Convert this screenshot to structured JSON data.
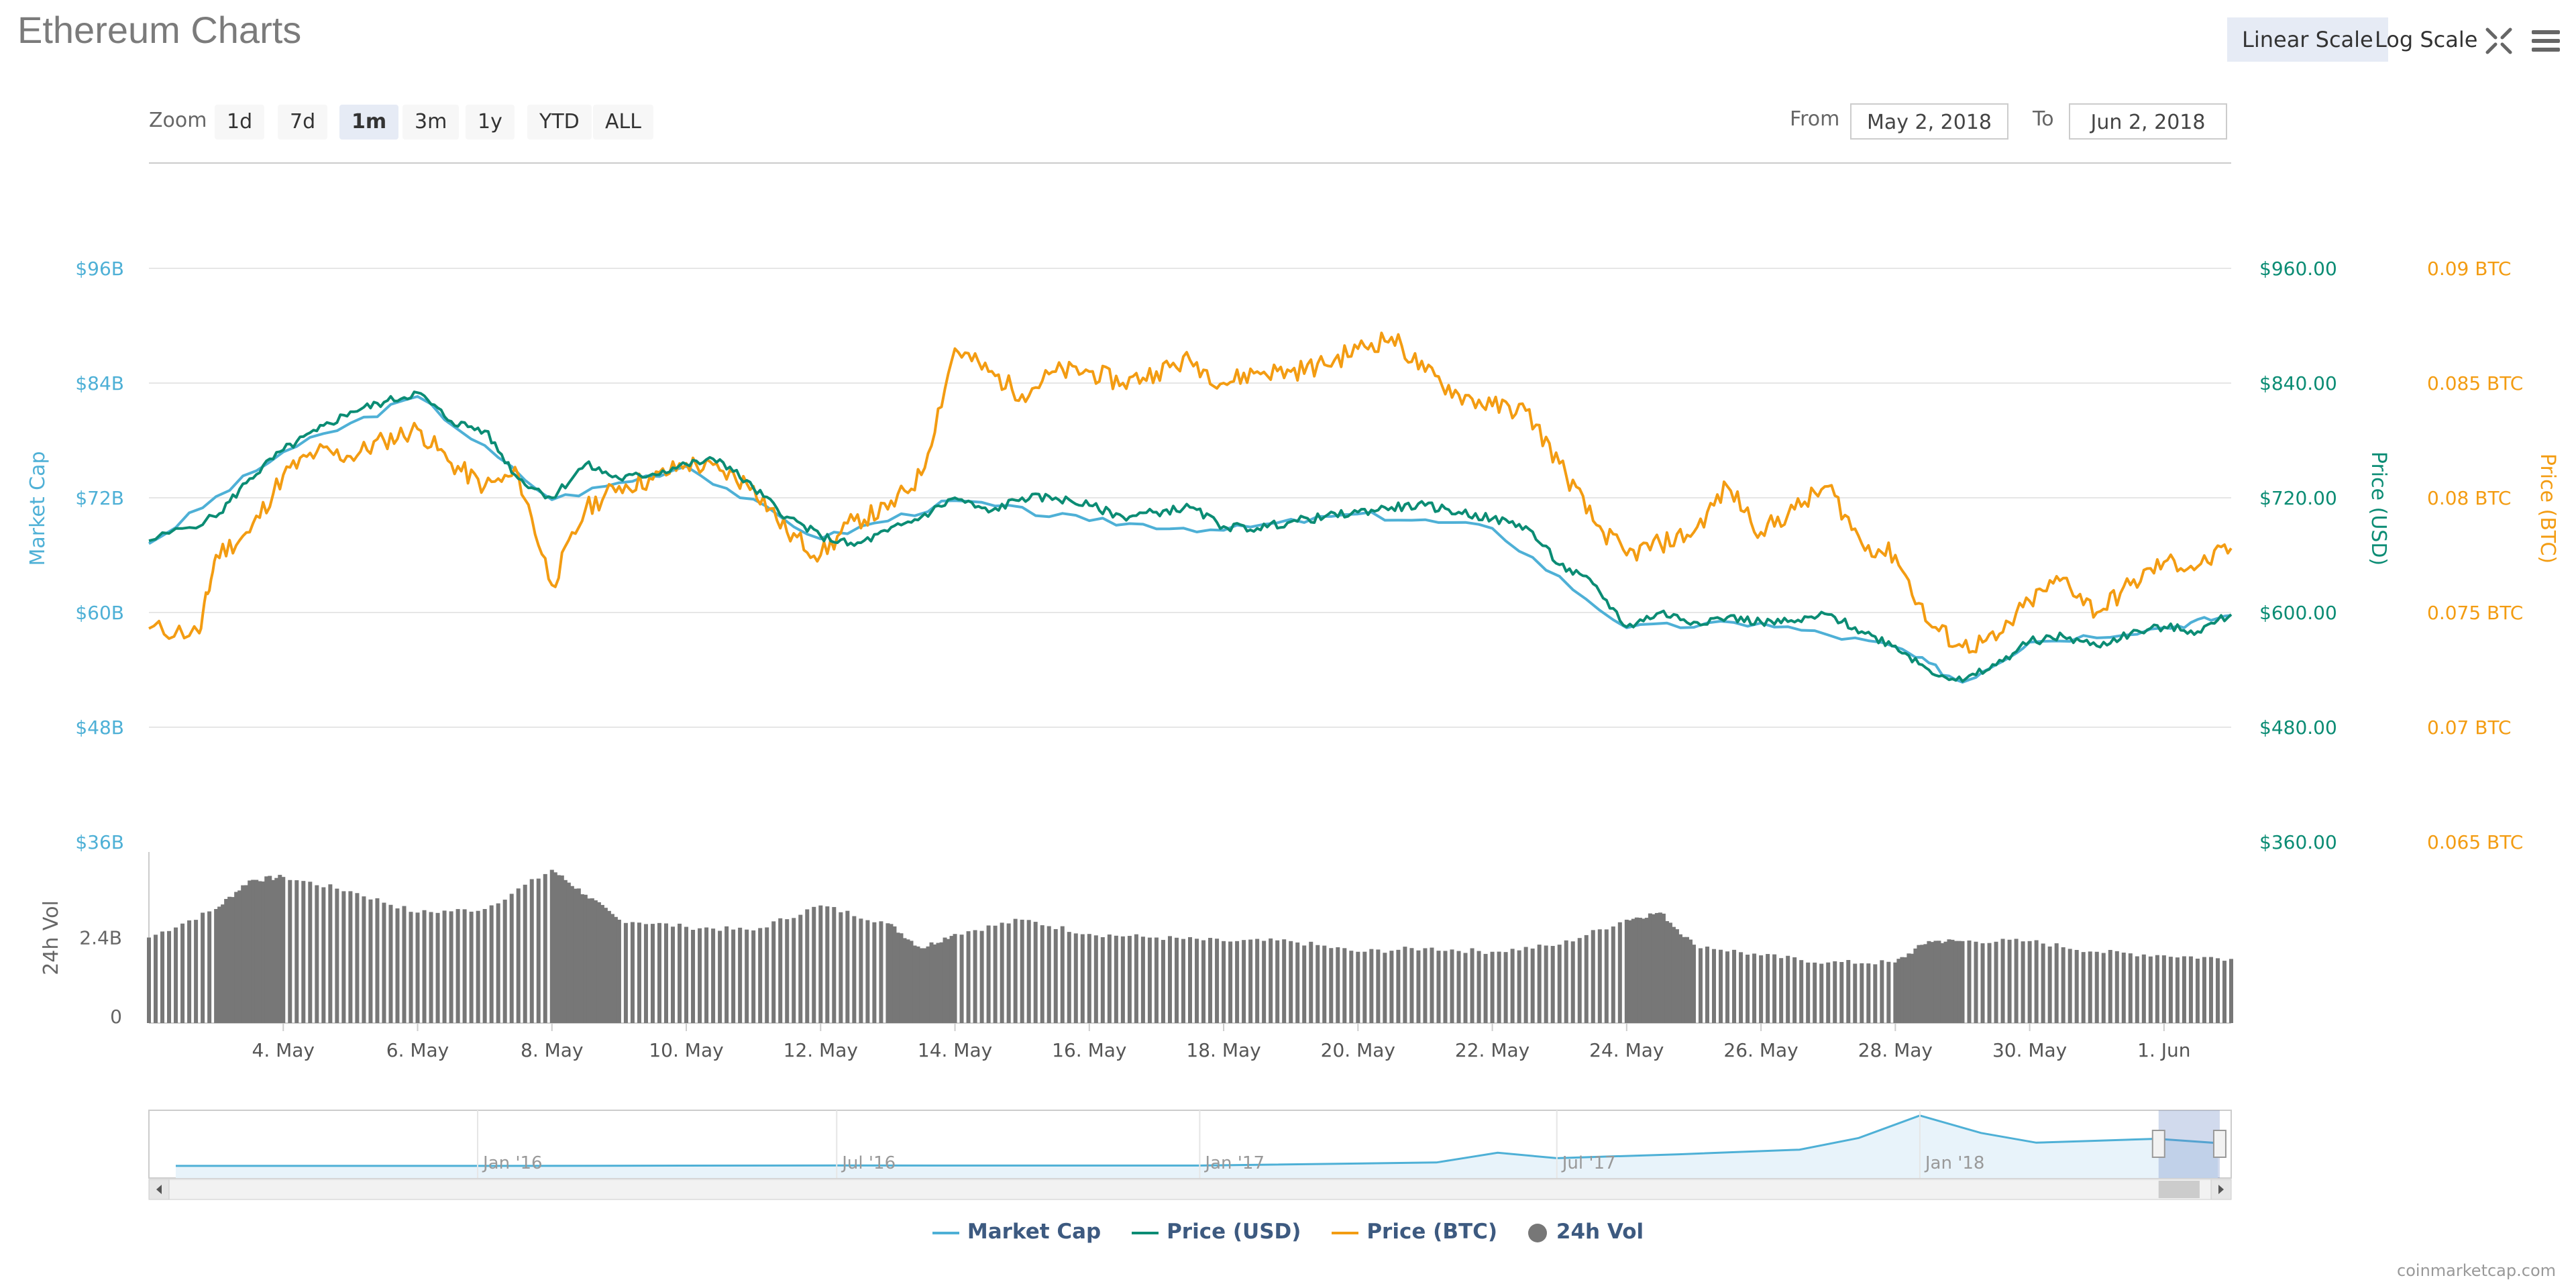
{
  "header": {
    "title": "Ethereum Charts",
    "scale_linear": "Linear Scale",
    "scale_log": "Log Scale",
    "active_scale": "linear"
  },
  "zoom": {
    "label": "Zoom",
    "buttons": [
      "1d",
      "7d",
      "1m",
      "3m",
      "1y",
      "YTD",
      "ALL"
    ],
    "active": "1m"
  },
  "range": {
    "from_label": "From",
    "from_value": "May 2, 2018",
    "to_label": "To",
    "to_value": "Jun 2, 2018"
  },
  "legend": {
    "items": [
      {
        "label": "Market Cap",
        "color": "#4eb0d6",
        "kind": "line"
      },
      {
        "label": "Price (USD)",
        "color": "#0b8c74",
        "kind": "line"
      },
      {
        "label": "Price (BTC)",
        "color": "#f39c12",
        "kind": "line"
      },
      {
        "label": "24h Vol",
        "color": "#777777",
        "kind": "dot"
      }
    ]
  },
  "credits": "coinmarketcap.com",
  "colors": {
    "market_cap": "#4eb0d6",
    "price_usd": "#0b8c74",
    "price_btc": "#f39c12",
    "volume": "#777777",
    "grid": "#e6e6e6"
  },
  "chart_data": {
    "type": "line",
    "axes": {
      "market_cap": {
        "label": "Market Cap",
        "ticks": [
          "$96B",
          "$84B",
          "$72B",
          "$60B",
          "$48B",
          "$36B"
        ],
        "range": [
          36,
          96
        ],
        "unit": "B"
      },
      "price_usd": {
        "label": "Price (USD)",
        "ticks": [
          "$960.00",
          "$840.00",
          "$720.00",
          "$600.00",
          "$480.00",
          "$360.00"
        ],
        "range": [
          360,
          960
        ]
      },
      "price_btc": {
        "label": "Price (BTC)",
        "ticks": [
          "0.09 BTC",
          "0.085 BTC",
          "0.08 BTC",
          "0.075 BTC",
          "0.07 BTC",
          "0.065 BTC"
        ],
        "range": [
          0.065,
          0.09
        ]
      },
      "volume": {
        "label": "24h Vol",
        "ticks": [
          "2.4B",
          "0"
        ],
        "range": [
          0,
          4.8
        ]
      }
    },
    "x_ticks": [
      "4. May",
      "6. May",
      "8. May",
      "10. May",
      "12. May",
      "14. May",
      "16. May",
      "18. May",
      "20. May",
      "22. May",
      "24. May",
      "26. May",
      "28. May",
      "30. May",
      "1. Jun"
    ],
    "x_range": [
      "2018-05-02",
      "2018-06-02"
    ],
    "series": [
      {
        "name": "Price (USD)",
        "axis": "price_usd",
        "points": [
          [
            "2018-05-02",
            675
          ],
          [
            "2018-05-03",
            700
          ],
          [
            "2018-05-03T12",
            740
          ],
          [
            "2018-05-04",
            770
          ],
          [
            "2018-05-04T12",
            790
          ],
          [
            "2018-05-05",
            810
          ],
          [
            "2018-05-05T12",
            820
          ],
          [
            "2018-05-06",
            830
          ],
          [
            "2018-05-06T12",
            800
          ],
          [
            "2018-05-07",
            790
          ],
          [
            "2018-05-07T12",
            740
          ],
          [
            "2018-05-08",
            720
          ],
          [
            "2018-05-08T12",
            755
          ],
          [
            "2018-05-09",
            740
          ],
          [
            "2018-05-09T12",
            745
          ],
          [
            "2018-05-10",
            755
          ],
          [
            "2018-05-10T12",
            760
          ],
          [
            "2018-05-11",
            730
          ],
          [
            "2018-05-11T12",
            700
          ],
          [
            "2018-05-12",
            680
          ],
          [
            "2018-05-12T12",
            670
          ],
          [
            "2018-05-13",
            685
          ],
          [
            "2018-05-13T12",
            700
          ],
          [
            "2018-05-14",
            720
          ],
          [
            "2018-05-14T12",
            705
          ],
          [
            "2018-05-15",
            720
          ],
          [
            "2018-05-15T12",
            720
          ],
          [
            "2018-05-16",
            712
          ],
          [
            "2018-05-16T12",
            700
          ],
          [
            "2018-05-17",
            705
          ],
          [
            "2018-05-17T12",
            710
          ],
          [
            "2018-05-18",
            690
          ],
          [
            "2018-05-18T12",
            688
          ],
          [
            "2018-05-19",
            695
          ],
          [
            "2018-05-19T12",
            700
          ],
          [
            "2018-05-20",
            705
          ],
          [
            "2018-05-20T12",
            710
          ],
          [
            "2018-05-21",
            712
          ],
          [
            "2018-05-21T12",
            705
          ],
          [
            "2018-05-22",
            698
          ],
          [
            "2018-05-22T12",
            690
          ],
          [
            "2018-05-23",
            650
          ],
          [
            "2018-05-23T12",
            630
          ],
          [
            "2018-05-24",
            585
          ],
          [
            "2018-05-24T12",
            600
          ],
          [
            "2018-05-25",
            590
          ],
          [
            "2018-05-25T12",
            595
          ],
          [
            "2018-05-26",
            590
          ],
          [
            "2018-05-26T12",
            590
          ],
          [
            "2018-05-27",
            598
          ],
          [
            "2018-05-27T12",
            580
          ],
          [
            "2018-05-28",
            565
          ],
          [
            "2018-05-28T12",
            540
          ],
          [
            "2018-05-29",
            528
          ],
          [
            "2018-05-29T12",
            545
          ],
          [
            "2018-05-30",
            570
          ],
          [
            "2018-05-30T12",
            575
          ],
          [
            "2018-05-31",
            565
          ],
          [
            "2018-05-31T12",
            578
          ],
          [
            "2018-06-01",
            585
          ],
          [
            "2018-06-01T12",
            580
          ],
          [
            "2018-06-02",
            598
          ]
        ]
      },
      {
        "name": "Market Cap",
        "axis": "market_cap",
        "points": [
          [
            "2018-05-02",
            67.2
          ],
          [
            "2018-05-04",
            76.8
          ],
          [
            "2018-05-06",
            82.6
          ],
          [
            "2018-05-08",
            71.8
          ],
          [
            "2018-05-10",
            75.3
          ],
          [
            "2018-05-12",
            67.7
          ],
          [
            "2018-05-14",
            71.7
          ],
          [
            "2018-05-16",
            69.6
          ],
          [
            "2018-05-18",
            68.6
          ],
          [
            "2018-05-20",
            70.3
          ],
          [
            "2018-05-22",
            68.8
          ],
          [
            "2018-05-24",
            58.4
          ],
          [
            "2018-05-26",
            58.9
          ],
          [
            "2018-05-28",
            56.4
          ],
          [
            "2018-05-29",
            52.7
          ],
          [
            "2018-05-30",
            56.9
          ],
          [
            "2018-06-01",
            58.4
          ],
          [
            "2018-06-02",
            59.7
          ]
        ]
      },
      {
        "name": "Price (BTC)",
        "axis": "price_btc",
        "points": [
          [
            "2018-05-02",
            0.0743
          ],
          [
            "2018-05-02T18",
            0.0741
          ],
          [
            "2018-05-03",
            0.0775
          ],
          [
            "2018-05-03T12",
            0.0785
          ],
          [
            "2018-05-04",
            0.081
          ],
          [
            "2018-05-04T12",
            0.082
          ],
          [
            "2018-05-05",
            0.0818
          ],
          [
            "2018-05-05T12",
            0.0825
          ],
          [
            "2018-05-06",
            0.083
          ],
          [
            "2018-05-06T12",
            0.0815
          ],
          [
            "2018-05-07",
            0.0805
          ],
          [
            "2018-05-07T12",
            0.081
          ],
          [
            "2018-05-08",
            0.0762
          ],
          [
            "2018-05-08T12",
            0.0795
          ],
          [
            "2018-05-09",
            0.0805
          ],
          [
            "2018-05-09T12",
            0.0808
          ],
          [
            "2018-05-10",
            0.0815
          ],
          [
            "2018-05-10T12",
            0.0812
          ],
          [
            "2018-05-11",
            0.0805
          ],
          [
            "2018-05-11T12",
            0.0785
          ],
          [
            "2018-05-12",
            0.0775
          ],
          [
            "2018-05-12T12",
            0.079
          ],
          [
            "2018-05-13",
            0.0795
          ],
          [
            "2018-05-13T12",
            0.081
          ],
          [
            "2018-05-14",
            0.0865
          ],
          [
            "2018-05-14T12",
            0.0855
          ],
          [
            "2018-05-15",
            0.0845
          ],
          [
            "2018-05-15T12",
            0.0855
          ],
          [
            "2018-05-16",
            0.0855
          ],
          [
            "2018-05-16T12",
            0.085
          ],
          [
            "2018-05-17",
            0.0855
          ],
          [
            "2018-05-17T12",
            0.086
          ],
          [
            "2018-05-18",
            0.085
          ],
          [
            "2018-05-18T12",
            0.0855
          ],
          [
            "2018-05-19",
            0.0855
          ],
          [
            "2018-05-19T12",
            0.0858
          ],
          [
            "2018-05-20",
            0.0865
          ],
          [
            "2018-05-20T12",
            0.087
          ],
          [
            "2018-05-21",
            0.0855
          ],
          [
            "2018-05-21T12",
            0.0845
          ],
          [
            "2018-05-22",
            0.084
          ],
          [
            "2018-05-22T12",
            0.0838
          ],
          [
            "2018-05-23",
            0.0815
          ],
          [
            "2018-05-23T12",
            0.079
          ],
          [
            "2018-05-24",
            0.0775
          ],
          [
            "2018-05-24T12",
            0.078
          ],
          [
            "2018-05-25",
            0.0785
          ],
          [
            "2018-05-25T12",
            0.0805
          ],
          [
            "2018-05-26",
            0.0785
          ],
          [
            "2018-05-26T12",
            0.0795
          ],
          [
            "2018-05-27",
            0.0805
          ],
          [
            "2018-05-27T12",
            0.078
          ],
          [
            "2018-05-28",
            0.0775
          ],
          [
            "2018-05-28T12",
            0.0745
          ],
          [
            "2018-05-29",
            0.0735
          ],
          [
            "2018-05-29T12",
            0.0738
          ],
          [
            "2018-05-30",
            0.0755
          ],
          [
            "2018-05-30T12",
            0.0765
          ],
          [
            "2018-05-31",
            0.075
          ],
          [
            "2018-05-31T12",
            0.0762
          ],
          [
            "2018-06-01",
            0.0772
          ],
          [
            "2018-06-01T12",
            0.077
          ],
          [
            "2018-06-02",
            0.0778
          ]
        ]
      },
      {
        "name": "24h Vol",
        "axis": "volume",
        "type": "column",
        "points": [
          [
            "2018-05-02",
            2.4
          ],
          [
            "2018-05-03",
            3.2
          ],
          [
            "2018-05-03T12",
            4.0
          ],
          [
            "2018-05-04",
            4.1
          ],
          [
            "2018-05-05",
            3.7
          ],
          [
            "2018-05-06",
            3.1
          ],
          [
            "2018-05-07",
            3.2
          ],
          [
            "2018-05-08",
            4.3
          ],
          [
            "2018-05-08T12",
            3.6
          ],
          [
            "2018-05-09",
            2.9
          ],
          [
            "2018-05-10",
            2.7
          ],
          [
            "2018-05-11",
            2.6
          ],
          [
            "2018-05-12",
            3.3
          ],
          [
            "2018-05-13",
            2.8
          ],
          [
            "2018-05-13T12",
            2.1
          ],
          [
            "2018-05-14",
            2.5
          ],
          [
            "2018-05-15",
            2.9
          ],
          [
            "2018-05-16",
            2.5
          ],
          [
            "2018-05-17",
            2.4
          ],
          [
            "2018-05-18",
            2.3
          ],
          [
            "2018-05-19",
            2.3
          ],
          [
            "2018-05-20",
            2.0
          ],
          [
            "2018-05-21",
            2.1
          ],
          [
            "2018-05-22",
            2.0
          ],
          [
            "2018-05-23",
            2.2
          ],
          [
            "2018-05-24",
            2.9
          ],
          [
            "2018-05-24T12",
            3.1
          ],
          [
            "2018-05-25",
            2.2
          ],
          [
            "2018-05-26",
            1.9
          ],
          [
            "2018-05-27",
            1.7
          ],
          [
            "2018-05-28",
            1.7
          ],
          [
            "2018-05-28T12",
            2.3
          ],
          [
            "2018-05-29",
            2.3
          ],
          [
            "2018-05-30",
            2.3
          ],
          [
            "2018-05-31",
            2.0
          ],
          [
            "2018-06-01",
            1.9
          ],
          [
            "2018-06-02",
            1.8
          ]
        ]
      }
    ],
    "navigator": {
      "x_ticks": [
        "Jan '16",
        "Jul '16",
        "Jan '17",
        "Jul '17",
        "Jan '18"
      ],
      "series_name": "Price (USD)",
      "points": [
        [
          "2015-08",
          1
        ],
        [
          "2016-01",
          1
        ],
        [
          "2016-07",
          12
        ],
        [
          "2017-01",
          10
        ],
        [
          "2017-05",
          90
        ],
        [
          "2017-06",
          340
        ],
        [
          "2017-07",
          200
        ],
        [
          "2017-09",
          300
        ],
        [
          "2017-11",
          420
        ],
        [
          "2017-12",
          720
        ],
        [
          "2018-01",
          1300
        ],
        [
          "2018-02",
          850
        ],
        [
          "2018-03",
          600
        ],
        [
          "2018-04",
          650
        ],
        [
          "2018-05",
          700
        ],
        [
          "2018-06",
          590
        ]
      ]
    },
    "grid": true,
    "legend_position": "bottom"
  }
}
